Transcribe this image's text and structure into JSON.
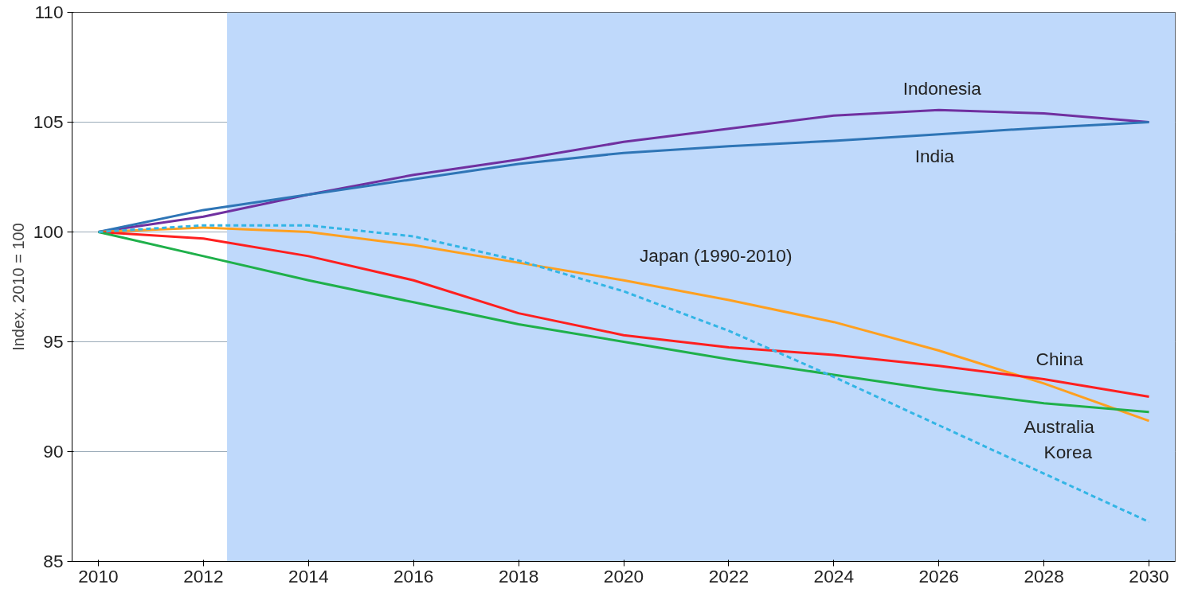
{
  "chart_data": {
    "type": "line",
    "ylabel": "Index, 2010 = 100",
    "x": [
      2010,
      2012,
      2014,
      2016,
      2018,
      2020,
      2022,
      2024,
      2026,
      2028,
      2030
    ],
    "series": [
      {
        "name": "Indonesia",
        "color": "#7030a0",
        "values": [
          100,
          100.7,
          101.7,
          102.6,
          103.3,
          104.1,
          104.7,
          105.3,
          105.55,
          105.4,
          105.0
        ]
      },
      {
        "name": "India",
        "color": "#2e75b6",
        "values": [
          100,
          101.0,
          101.7,
          102.4,
          103.1,
          103.6,
          103.9,
          104.15,
          104.45,
          104.75,
          105.0
        ]
      },
      {
        "name": "Japan (1990-2010)",
        "color": "#ffa020",
        "values": [
          100,
          100.2,
          100.0,
          99.4,
          98.6,
          97.8,
          96.9,
          95.9,
          94.6,
          93.1,
          91.4
        ]
      },
      {
        "name": "China",
        "color": "#ff1f1f",
        "values": [
          100,
          99.7,
          98.9,
          97.8,
          96.3,
          95.3,
          94.75,
          94.4,
          93.9,
          93.3,
          92.5
        ]
      },
      {
        "name": "Australia",
        "color": "#1fb04a",
        "values": [
          100,
          98.9,
          97.8,
          96.8,
          95.8,
          95.0,
          94.2,
          93.5,
          92.8,
          92.2,
          91.8
        ]
      },
      {
        "name": "Korea",
        "color": "#33b5e5",
        "line_style": "dashed",
        "values": [
          100,
          100.3,
          100.3,
          99.8,
          98.7,
          97.3,
          95.5,
          93.4,
          91.2,
          89.0,
          86.8
        ]
      }
    ],
    "xlim": [
      2009.5,
      2030.5
    ],
    "ylim": [
      85,
      110
    ],
    "xticks": [
      2010,
      2012,
      2014,
      2016,
      2018,
      2020,
      2022,
      2024,
      2026,
      2028,
      2030
    ],
    "yticks": [
      85,
      90,
      95,
      100,
      105,
      110
    ],
    "bands": [
      {
        "axis": "x",
        "from": 2012.45,
        "to": 2030.5,
        "color": "#bfd9fb"
      }
    ],
    "grid": "y",
    "marker": "none",
    "line_style": "solid"
  }
}
